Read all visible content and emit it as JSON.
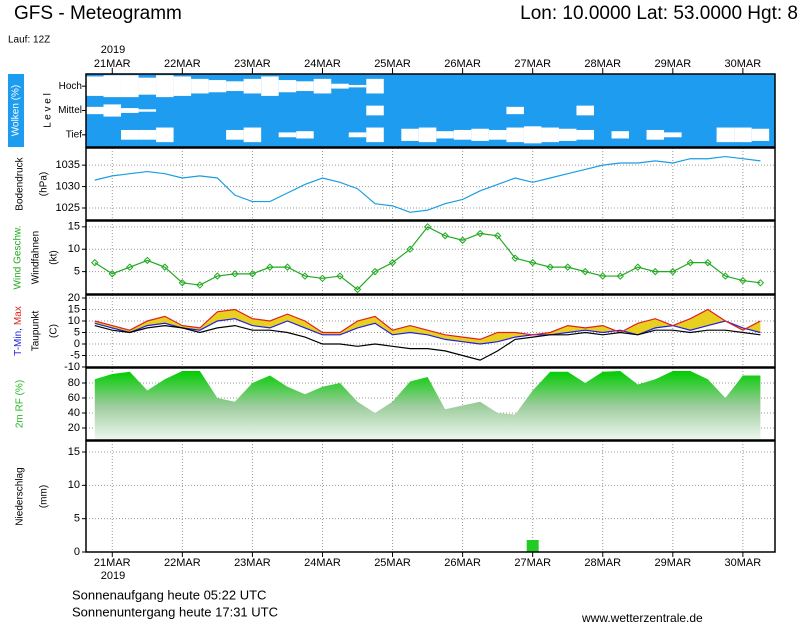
{
  "header": {
    "title": "GFS - Meteogramm",
    "location": "Lon: 10.0000 Lat: 53.0000 Hgt: 8",
    "run": "Lauf: 12Z",
    "year": "2019"
  },
  "footer": {
    "sunrise": "Sonnenaufgang heute 05:22 UTC",
    "sunset": "Sonnenuntergang heute 17:31 UTC",
    "website": "www.wetterzentrale.de"
  },
  "chart_data": [
    {
      "type": "cloud",
      "ylabel": "Wolken (%)",
      "level_label": "L e v e l",
      "categories": [
        "Hoch",
        "Mittel",
        "Tief"
      ],
      "xlim": [
        -9,
        227
      ],
      "xticks": [
        {
          "value": 0,
          "label": "21MAR"
        },
        {
          "value": 24,
          "label": "22MAR"
        },
        {
          "value": 48,
          "label": "23MAR"
        },
        {
          "value": 72,
          "label": "24MAR"
        },
        {
          "value": 96,
          "label": "25MAR"
        },
        {
          "value": 120,
          "label": "26MAR"
        },
        {
          "value": 144,
          "label": "27MAR"
        },
        {
          "value": 168,
          "label": "28MAR"
        },
        {
          "value": 192,
          "label": "29MAR"
        },
        {
          "value": 216,
          "label": "30MAR"
        }
      ],
      "x": [
        -6,
        0,
        6,
        12,
        18,
        24,
        30,
        36,
        42,
        48,
        54,
        60,
        66,
        72,
        78,
        84,
        90,
        96,
        102,
        108,
        114,
        120,
        126,
        132,
        138,
        144,
        150,
        156,
        162,
        168,
        174,
        180,
        186,
        192,
        198,
        204,
        210,
        216,
        222
      ],
      "background": "#1e9cf0",
      "color": "#ffffff",
      "series": [
        {
          "name": "Hoch",
          "values": [
            80,
            90,
            90,
            70,
            90,
            80,
            60,
            50,
            40,
            60,
            80,
            50,
            40,
            60,
            20,
            10,
            60,
            0,
            0,
            0,
            0,
            0,
            0,
            0,
            0,
            0,
            0,
            0,
            0,
            0,
            0,
            0,
            0,
            0,
            0,
            0,
            0,
            0,
            0
          ]
        },
        {
          "name": "Mittel",
          "values": [
            30,
            50,
            20,
            10,
            0,
            0,
            0,
            0,
            0,
            0,
            0,
            0,
            0,
            0,
            0,
            0,
            40,
            0,
            0,
            0,
            0,
            0,
            0,
            0,
            30,
            0,
            0,
            0,
            40,
            0,
            0,
            0,
            0,
            0,
            0,
            0,
            0,
            0,
            0
          ]
        },
        {
          "name": "Tief",
          "values": [
            0,
            0,
            40,
            40,
            60,
            0,
            0,
            0,
            40,
            60,
            0,
            20,
            30,
            0,
            0,
            20,
            60,
            0,
            50,
            60,
            30,
            40,
            50,
            40,
            60,
            70,
            60,
            50,
            40,
            0,
            30,
            0,
            40,
            20,
            0,
            0,
            60,
            60,
            50
          ]
        }
      ]
    },
    {
      "type": "line",
      "ylabel": [
        "Bodendruck",
        "(hPa)"
      ],
      "xlim": [
        -9,
        227
      ],
      "ylim": [
        1022.2,
        1039
      ],
      "yticks": [
        1025,
        1030,
        1035
      ],
      "x": [
        -6,
        0,
        6,
        12,
        18,
        24,
        30,
        36,
        42,
        48,
        54,
        60,
        66,
        72,
        78,
        84,
        90,
        96,
        102,
        108,
        114,
        120,
        126,
        132,
        138,
        144,
        150,
        156,
        162,
        168,
        174,
        180,
        186,
        192,
        198,
        204,
        210,
        216,
        222
      ],
      "series": [
        {
          "color": "#1a9ee0",
          "values": [
            1031.5,
            1032.5,
            1033,
            1033.5,
            1033,
            1032,
            1032.5,
            1032,
            1028,
            1026.5,
            1026.5,
            1028.5,
            1030.5,
            1032,
            1031,
            1029.5,
            1026,
            1025.5,
            1024,
            1024.5,
            1026,
            1027,
            1029,
            1030.5,
            1032,
            1031,
            1032,
            1033,
            1034,
            1035,
            1035.5,
            1035.5,
            1036,
            1035.5,
            1036.5,
            1036.5,
            1037,
            1036.5,
            1036
          ]
        }
      ]
    },
    {
      "type": "line",
      "ylabel": [
        "Windfahnen",
        "(kt)"
      ],
      "xlim": [
        -9,
        227
      ],
      "ylim": [
        0,
        16.3
      ],
      "yticks": [
        5,
        10,
        15
      ],
      "markers": true,
      "x": [
        -6,
        0,
        6,
        12,
        18,
        24,
        30,
        36,
        42,
        48,
        54,
        60,
        66,
        72,
        78,
        84,
        90,
        96,
        102,
        108,
        114,
        120,
        126,
        132,
        138,
        144,
        150,
        156,
        162,
        168,
        174,
        180,
        186,
        192,
        198,
        204,
        210,
        216,
        222
      ],
      "series": [
        {
          "name": "Wind Geschw.",
          "color": "#22aa22",
          "values": [
            7,
            4.5,
            6,
            7.5,
            6,
            2.5,
            2,
            4,
            4.5,
            4.5,
            6,
            6,
            4,
            3.5,
            4,
            1,
            5,
            7,
            10,
            15,
            13,
            12,
            13.5,
            13,
            8,
            7,
            6,
            6,
            5,
            4,
            4,
            6,
            5,
            5,
            7,
            7,
            4,
            3,
            2.5
          ]
        }
      ]
    },
    {
      "type": "range",
      "ylabel": [
        "Taupunkt",
        "(C)"
      ],
      "xlim": [
        -9,
        227
      ],
      "ylim": [
        -10,
        21.3
      ],
      "yticks": [
        -10,
        -5,
        0,
        5,
        10,
        15,
        20
      ],
      "fill": "#e8d020",
      "x": [
        -6,
        0,
        6,
        12,
        18,
        24,
        30,
        36,
        42,
        48,
        54,
        60,
        66,
        72,
        78,
        84,
        90,
        96,
        102,
        108,
        114,
        120,
        126,
        132,
        138,
        144,
        150,
        156,
        162,
        168,
        174,
        180,
        186,
        192,
        198,
        204,
        210,
        216,
        222
      ],
      "series": [
        {
          "name": "T-Min,",
          "color": "#2020e0",
          "values": [
            9,
            7,
            5,
            8,
            9,
            7,
            6,
            10,
            11,
            8,
            7,
            10,
            7,
            4,
            4,
            7,
            9,
            4,
            5,
            4,
            2,
            1,
            0,
            1,
            3,
            4,
            4,
            5,
            6,
            5,
            6,
            4,
            7,
            8,
            6,
            8,
            10,
            7,
            5
          ]
        },
        {
          "name": "Max",
          "color": "#e02020",
          "values": [
            10,
            8,
            6,
            10,
            12,
            8,
            7,
            14,
            15,
            11,
            10,
            13,
            10,
            5,
            5,
            10,
            12,
            6,
            8,
            6,
            4,
            3,
            2,
            5,
            5,
            4,
            5,
            8,
            7,
            8,
            5,
            9,
            11,
            8,
            11,
            15,
            10,
            6,
            10
          ]
        },
        {
          "name": "Taupunkt",
          "color": "#000000",
          "values": [
            8,
            6,
            5,
            7,
            8,
            7,
            5,
            7,
            8,
            6,
            6,
            5,
            3,
            0,
            0,
            -1,
            0,
            -1,
            -2,
            -2,
            -3,
            -5,
            -7,
            -3,
            2,
            3,
            4,
            4,
            5,
            4,
            5,
            4,
            6,
            6,
            5,
            6,
            6,
            5,
            4
          ]
        }
      ]
    },
    {
      "type": "area",
      "ylabel": "2m RF (%)",
      "xlim": [
        -9,
        227
      ],
      "ylim": [
        4,
        100
      ],
      "yticks": [
        20,
        40,
        60,
        80
      ],
      "color": "#22bb22",
      "x": [
        -6,
        0,
        6,
        12,
        18,
        24,
        30,
        36,
        42,
        48,
        54,
        60,
        66,
        72,
        78,
        84,
        90,
        96,
        102,
        108,
        114,
        120,
        126,
        132,
        138,
        144,
        150,
        156,
        162,
        168,
        174,
        180,
        186,
        192,
        198,
        204,
        210,
        216,
        222
      ],
      "values": [
        85,
        92,
        95,
        70,
        85,
        96,
        96,
        60,
        55,
        80,
        90,
        75,
        65,
        75,
        80,
        55,
        40,
        55,
        82,
        88,
        45,
        50,
        55,
        40,
        38,
        70,
        95,
        95,
        80,
        95,
        96,
        78,
        85,
        96,
        96,
        85,
        60,
        90,
        90
      ]
    },
    {
      "type": "bar",
      "ylabel": [
        "Niederschlag",
        "(mm)"
      ],
      "xlim": [
        -9,
        227
      ],
      "ylim": [
        0,
        16.65
      ],
      "yticks": [
        0,
        5,
        10,
        15
      ],
      "color": "#22cc22",
      "x": [
        -6,
        0,
        6,
        12,
        18,
        24,
        30,
        36,
        42,
        48,
        54,
        60,
        66,
        72,
        78,
        84,
        90,
        96,
        102,
        108,
        114,
        120,
        126,
        132,
        138,
        144,
        150,
        156,
        162,
        168,
        174,
        180,
        186,
        192,
        198,
        204,
        210,
        216,
        222
      ],
      "values": [
        0,
        0,
        0,
        0,
        0,
        0,
        0,
        0,
        0,
        0,
        0,
        0,
        0,
        0,
        0,
        0,
        0,
        0,
        0,
        0,
        0,
        0,
        0,
        0,
        0,
        1.8,
        0,
        0,
        0,
        0,
        0,
        0,
        0,
        0,
        0,
        0,
        0,
        0,
        0
      ]
    }
  ]
}
